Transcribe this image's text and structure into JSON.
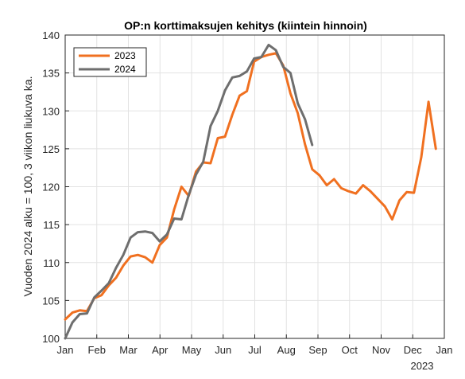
{
  "chart_data": {
    "type": "line",
    "title": "OP:n korttimaksujen kehitys (kiintein hinnoin)",
    "ylabel": "Vuoden 2024  alku = 100, 3 viikon liukuva ka.",
    "xlabel": "",
    "x_axis_year_label": "2023",
    "xlim": [
      0,
      12
    ],
    "ylim": [
      100,
      140
    ],
    "x_ticks": [
      {
        "x": 0,
        "label": "Jan"
      },
      {
        "x": 1,
        "label": "Feb"
      },
      {
        "x": 2,
        "label": "Mar"
      },
      {
        "x": 3,
        "label": "Apr"
      },
      {
        "x": 4,
        "label": "May"
      },
      {
        "x": 5,
        "label": "Jun"
      },
      {
        "x": 6,
        "label": "Jul"
      },
      {
        "x": 7,
        "label": "Aug"
      },
      {
        "x": 8,
        "label": "Sep"
      },
      {
        "x": 9,
        "label": "Oct"
      },
      {
        "x": 10,
        "label": "Nov"
      },
      {
        "x": 11,
        "label": "Dec"
      },
      {
        "x": 12,
        "label": "Jan"
      }
    ],
    "y_ticks": [
      100,
      105,
      110,
      115,
      120,
      125,
      130,
      135,
      140
    ],
    "grid": true,
    "legend_position": "top-left",
    "series": [
      {
        "name": "2023",
        "color": "#f07020",
        "x": [
          0.0,
          0.23,
          0.46,
          0.69,
          0.92,
          1.15,
          1.38,
          1.61,
          1.84,
          2.07,
          2.3,
          2.53,
          2.76,
          2.99,
          3.22,
          3.45,
          3.68,
          3.91,
          4.14,
          4.37,
          4.6,
          4.83,
          5.06,
          5.29,
          5.52,
          5.75,
          5.98,
          6.21,
          6.44,
          6.67,
          6.9,
          7.13,
          7.36,
          7.59,
          7.82,
          8.05,
          8.28,
          8.51,
          8.74,
          8.97,
          9.2,
          9.43,
          9.66,
          9.89,
          10.12,
          10.35,
          10.58,
          10.81,
          11.04,
          11.27,
          11.5,
          11.73
        ],
        "values": [
          102.5,
          103.4,
          103.7,
          103.6,
          105.3,
          105.7,
          107.0,
          108.0,
          109.6,
          110.8,
          111.0,
          110.7,
          110.0,
          112.3,
          113.3,
          117.0,
          120.0,
          118.8,
          122.0,
          123.2,
          123.1,
          126.4,
          126.6,
          129.5,
          132.0,
          132.6,
          136.5,
          137.1,
          137.4,
          137.6,
          136.0,
          132.3,
          129.7,
          125.6,
          122.3,
          121.5,
          120.2,
          121.0,
          119.8,
          119.4,
          119.1,
          120.2,
          119.4,
          118.4,
          117.4,
          115.7,
          118.2,
          119.3,
          119.2,
          123.9,
          131.2,
          125.0
        ]
      },
      {
        "name": "2024",
        "color": "#6e6e6e",
        "x": [
          0.0,
          0.23,
          0.46,
          0.69,
          0.92,
          1.15,
          1.38,
          1.61,
          1.84,
          2.07,
          2.3,
          2.53,
          2.76,
          2.99,
          3.22,
          3.45,
          3.68,
          3.91,
          4.14,
          4.37,
          4.6,
          4.83,
          5.06,
          5.29,
          5.52,
          5.75,
          5.98,
          6.21,
          6.44,
          6.67,
          6.9,
          7.13,
          7.36,
          7.59,
          7.82
        ],
        "values": [
          100.0,
          102.1,
          103.2,
          103.3,
          105.4,
          106.3,
          107.3,
          109.3,
          111.0,
          113.3,
          114.0,
          114.1,
          113.9,
          112.8,
          113.7,
          115.8,
          115.7,
          118.9,
          121.6,
          123.3,
          128.0,
          130.0,
          132.7,
          134.4,
          134.6,
          135.2,
          136.9,
          137.1,
          138.7,
          138.0,
          135.8,
          135.0,
          131.0,
          128.9,
          125.5
        ]
      }
    ]
  }
}
